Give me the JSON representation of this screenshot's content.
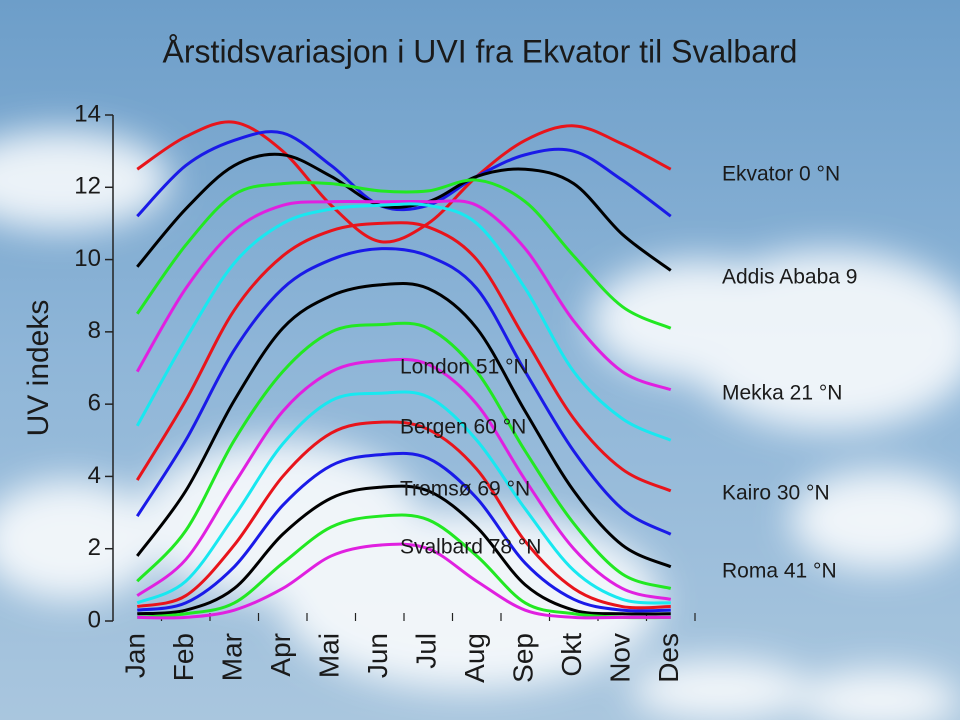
{
  "chart_data": {
    "type": "line",
    "title": "Årstidsvariasjon i UVI fra Ekvator til Svalbard",
    "y_label": "UV indeks",
    "categories": [
      "Jan",
      "Feb",
      "Mar",
      "Apr",
      "Mai",
      "Jun",
      "Jul",
      "Aug",
      "Sep",
      "Okt",
      "Nov",
      "Des"
    ],
    "ylim": [
      0,
      14
    ],
    "yticks": [
      0,
      2,
      4,
      6,
      8,
      10,
      12,
      14
    ],
    "annotations": [
      "Ekvator 0 °N",
      "Addis Ababa 9",
      "Mekka 21 °N",
      "Kairo 30 °N",
      "Roma 41 °N",
      "London 51 °N",
      "Bergen 60 °N",
      "Tromsø 69 °N",
      "Svalbard 78 °N"
    ],
    "series": [
      {
        "color": "#e8141b",
        "values": [
          12.5,
          13.4,
          13.8,
          13.0,
          11.5,
          10.5,
          11.0,
          12.3,
          13.3,
          13.7,
          13.2,
          12.5
        ]
      },
      {
        "color": "#1a1ae8",
        "values": [
          11.2,
          12.6,
          13.3,
          13.5,
          12.6,
          11.5,
          11.5,
          12.3,
          12.9,
          13.0,
          12.2,
          11.2
        ]
      },
      {
        "color": "#000000",
        "values": [
          9.8,
          11.4,
          12.6,
          12.9,
          12.3,
          11.5,
          11.6,
          12.3,
          12.5,
          12.1,
          10.7,
          9.7
        ]
      },
      {
        "color": "#22e822",
        "values": [
          8.5,
          10.4,
          11.8,
          12.1,
          12.1,
          11.9,
          11.9,
          12.2,
          11.6,
          10.1,
          8.7,
          8.1
        ]
      },
      {
        "color": "#e020e0",
        "values": [
          6.9,
          9.2,
          10.8,
          11.5,
          11.6,
          11.6,
          11.6,
          11.5,
          10.3,
          8.3,
          6.9,
          6.4
        ]
      },
      {
        "color": "#18e8f0",
        "values": [
          5.4,
          7.8,
          9.9,
          11.0,
          11.4,
          11.5,
          11.5,
          11.0,
          9.2,
          6.9,
          5.6,
          5.0
        ]
      },
      {
        "color": "#e8141b",
        "values": [
          3.9,
          6.1,
          8.6,
          10.1,
          10.8,
          11.0,
          10.9,
          10.0,
          7.8,
          5.6,
          4.2,
          3.6
        ]
      },
      {
        "color": "#1a1ae8",
        "values": [
          2.9,
          5.0,
          7.5,
          9.2,
          10.0,
          10.3,
          10.1,
          9.2,
          6.9,
          4.7,
          3.1,
          2.4
        ]
      },
      {
        "color": "#000000",
        "values": [
          1.8,
          3.6,
          6.1,
          8.1,
          9.0,
          9.3,
          9.2,
          8.1,
          5.8,
          3.6,
          2.1,
          1.5
        ]
      },
      {
        "color": "#22e822",
        "values": [
          1.1,
          2.5,
          5.0,
          6.9,
          8.0,
          8.2,
          8.1,
          6.9,
          4.7,
          2.7,
          1.3,
          0.9
        ]
      },
      {
        "color": "#e020e0",
        "values": [
          0.7,
          1.7,
          3.8,
          5.8,
          6.9,
          7.2,
          7.1,
          6.0,
          3.9,
          2.0,
          0.9,
          0.6
        ]
      },
      {
        "color": "#18e8f0",
        "values": [
          0.5,
          1.1,
          2.9,
          4.9,
          6.1,
          6.3,
          6.2,
          5.0,
          3.1,
          1.4,
          0.6,
          0.5
        ]
      },
      {
        "color": "#e8141b",
        "values": [
          0.4,
          0.7,
          2.1,
          4.0,
          5.2,
          5.5,
          5.3,
          4.2,
          2.2,
          0.9,
          0.4,
          0.4
        ]
      },
      {
        "color": "#1a1ae8",
        "values": [
          0.3,
          0.5,
          1.5,
          3.2,
          4.3,
          4.6,
          4.5,
          3.4,
          1.6,
          0.6,
          0.3,
          0.3
        ]
      },
      {
        "color": "#000000",
        "values": [
          0.2,
          0.3,
          0.9,
          2.4,
          3.4,
          3.7,
          3.6,
          2.6,
          1.0,
          0.3,
          0.2,
          0.2
        ]
      },
      {
        "color": "#22e822",
        "values": [
          0.1,
          0.2,
          0.5,
          1.6,
          2.6,
          2.9,
          2.8,
          1.8,
          0.5,
          0.2,
          0.1,
          0.1
        ]
      },
      {
        "color": "#e020e0",
        "values": [
          0.1,
          0.1,
          0.3,
          0.9,
          1.8,
          2.1,
          2.0,
          1.1,
          0.3,
          0.1,
          0.1,
          0.1
        ]
      }
    ]
  }
}
